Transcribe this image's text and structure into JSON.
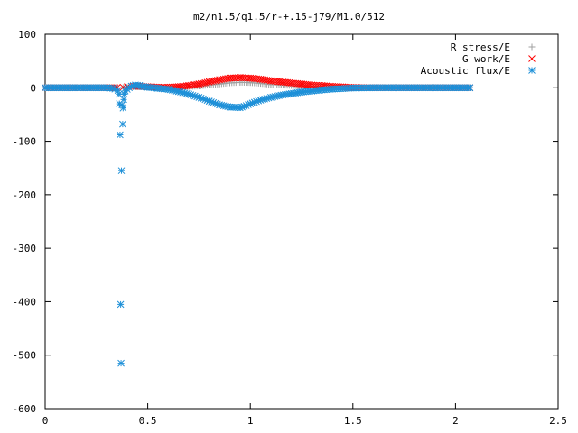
{
  "chart_data": {
    "type": "scatter",
    "title": "m2/n1.5/q1.5/r-+.15-j79/M1.0/512",
    "xlabel": "",
    "ylabel": "",
    "xlim": [
      0,
      2.5
    ],
    "ylim": [
      -600,
      100
    ],
    "xticks": [
      0,
      0.5,
      1,
      1.5,
      2,
      2.5
    ],
    "yticks": [
      100,
      0,
      -100,
      -200,
      -300,
      -400,
      -500,
      -600
    ],
    "xtick_labels": [
      "0",
      "0.5",
      "1",
      "1.5",
      "2",
      "2.5"
    ],
    "ytick_labels": [
      "100",
      "0",
      "-100",
      "-200",
      "-300",
      "-400",
      "-500",
      "-600"
    ],
    "grid": false,
    "legend_position": "top-right",
    "series": [
      {
        "name": "R stress/E",
        "marker": "plus",
        "color": "#a0a0a0",
        "x": [
          0.0,
          0.1,
          0.2,
          0.3,
          0.35,
          0.38,
          0.4,
          0.45,
          0.5,
          0.55,
          0.6,
          0.65,
          0.7,
          0.75,
          0.8,
          0.85,
          0.9,
          0.95,
          1.0,
          1.05,
          1.1,
          1.15,
          1.2,
          1.25,
          1.3,
          1.35,
          1.4,
          1.45,
          1.5,
          1.6,
          1.7,
          1.8,
          1.9,
          2.0,
          2.07
        ],
        "y": [
          0,
          0,
          0,
          0,
          0,
          0.5,
          1,
          1.5,
          1,
          0.5,
          0.5,
          1,
          2,
          3,
          5,
          7,
          9,
          10,
          9.5,
          8,
          6,
          5,
          4,
          3,
          2,
          1.5,
          1,
          0.5,
          0,
          0,
          0,
          0,
          0,
          0,
          0
        ]
      },
      {
        "name": "G work/E",
        "marker": "cross",
        "color": "#ff0000",
        "x": [
          0.0,
          0.1,
          0.2,
          0.3,
          0.35,
          0.38,
          0.4,
          0.45,
          0.5,
          0.55,
          0.6,
          0.65,
          0.7,
          0.75,
          0.8,
          0.85,
          0.9,
          0.95,
          1.0,
          1.05,
          1.1,
          1.15,
          1.2,
          1.25,
          1.3,
          1.35,
          1.4,
          1.45,
          1.5,
          1.6,
          1.7,
          1.8,
          1.9,
          2.0,
          2.07
        ],
        "y": [
          0,
          0,
          0,
          0,
          0,
          1,
          2,
          3,
          2,
          1,
          1,
          2,
          4,
          7,
          11,
          15,
          18,
          19,
          18,
          16,
          13,
          11,
          9,
          7,
          5,
          4,
          2.5,
          1.5,
          0.5,
          0,
          0,
          0,
          0,
          0,
          0
        ]
      },
      {
        "name": "Acoustic flux/E",
        "marker": "star",
        "color": "#1e90d8",
        "x": [
          0.0,
          0.05,
          0.1,
          0.15,
          0.2,
          0.25,
          0.3,
          0.33,
          0.355,
          0.36,
          0.362,
          0.365,
          0.368,
          0.37,
          0.372,
          0.375,
          0.378,
          0.38,
          0.383,
          0.386,
          0.39,
          0.4,
          0.41,
          0.42,
          0.44,
          0.46,
          0.48,
          0.5,
          0.55,
          0.6,
          0.65,
          0.7,
          0.75,
          0.8,
          0.85,
          0.9,
          0.95,
          0.97,
          1.0,
          1.05,
          1.1,
          1.15,
          1.2,
          1.25,
          1.3,
          1.35,
          1.4,
          1.45,
          1.5,
          1.6,
          1.7,
          1.8,
          1.9,
          2.0,
          2.07
        ],
        "y": [
          0,
          0,
          0,
          0,
          0,
          0,
          0,
          -1,
          -5,
          -12,
          -30,
          -88,
          -405,
          -515,
          -155,
          -32,
          -68,
          -38,
          -22,
          -12,
          -6,
          -3,
          0,
          3,
          5,
          4,
          2,
          1,
          -1,
          -3,
          -7,
          -12,
          -18,
          -25,
          -32,
          -36,
          -37,
          -35,
          -30,
          -23,
          -18,
          -14,
          -11,
          -8,
          -6,
          -4,
          -2.5,
          -1.5,
          -0.5,
          0,
          0,
          0,
          0,
          0,
          0
        ]
      }
    ]
  }
}
